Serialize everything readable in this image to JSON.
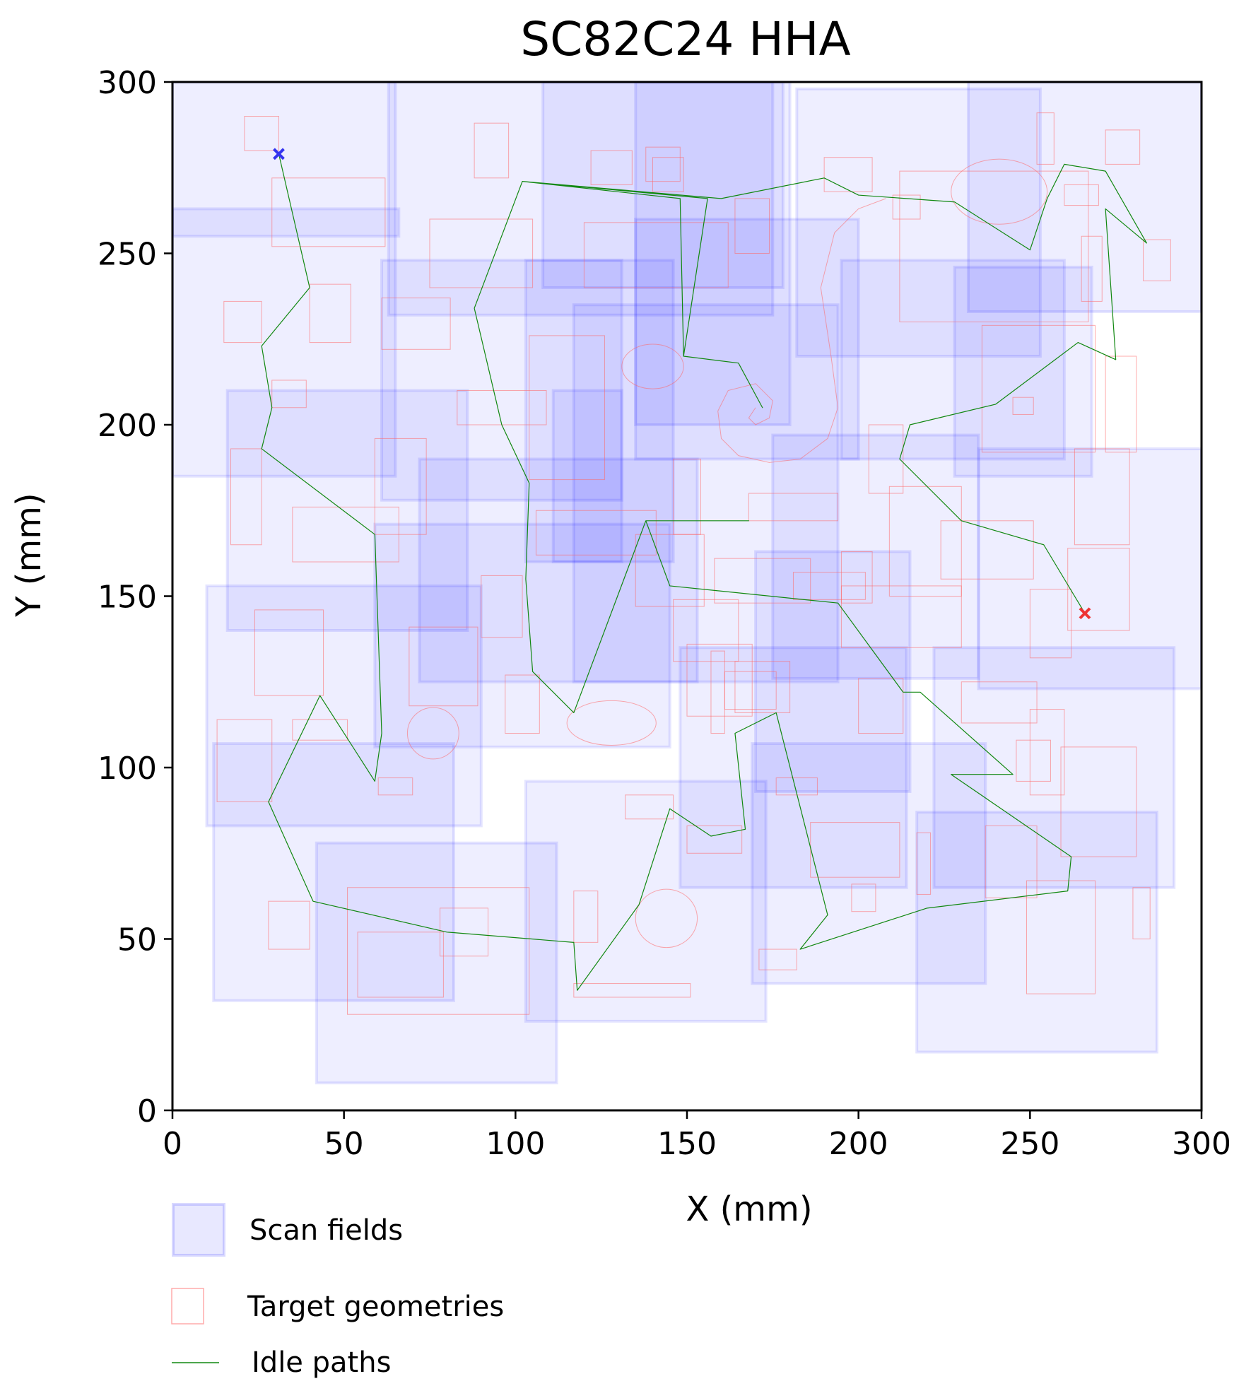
{
  "chart_data": {
    "type": "scatter",
    "title": "SC82C24 HHA",
    "xlabel": "X (mm)",
    "ylabel": "Y (mm)",
    "xlim": [
      0,
      300
    ],
    "ylim": [
      0,
      300
    ],
    "xticks": [
      0,
      50,
      100,
      150,
      200,
      250,
      300
    ],
    "yticks": [
      0,
      50,
      100,
      150,
      200,
      250,
      300
    ],
    "grid": false,
    "legend_placement": "bottom-left, below plot",
    "colors": {
      "scan_fill": "#0000ff",
      "scan_edge": "#0000ff",
      "target_edge": "#ff6666",
      "idle_path": "#118811",
      "start_marker": "#3333ee",
      "end_marker": "#ee3333"
    },
    "legend": [
      {
        "key": "scan",
        "label": "Scan fields"
      },
      {
        "key": "target",
        "label": "Target geometries"
      },
      {
        "key": "idle",
        "label": "Idle paths"
      }
    ],
    "scan_fields": [
      [
        0,
        185,
        65,
        115
      ],
      [
        63,
        232,
        112,
        68
      ],
      [
        108,
        240,
        70,
        60
      ],
      [
        135,
        200,
        45,
        100
      ],
      [
        0,
        255,
        66,
        8
      ],
      [
        61,
        178,
        70,
        70
      ],
      [
        16,
        140,
        70,
        70
      ],
      [
        72,
        125,
        81,
        65
      ],
      [
        135,
        190,
        65,
        70
      ],
      [
        103,
        160,
        43,
        88
      ],
      [
        117,
        125,
        77,
        110
      ],
      [
        182,
        220,
        71,
        78
      ],
      [
        232,
        233,
        68,
        67
      ],
      [
        228,
        185,
        40,
        61
      ],
      [
        195,
        190,
        65,
        58
      ],
      [
        235,
        123,
        65,
        70
      ],
      [
        10,
        83,
        80,
        70
      ],
      [
        12,
        32,
        70,
        75
      ],
      [
        42,
        8,
        70,
        70
      ],
      [
        103,
        26,
        70,
        70
      ],
      [
        148,
        65,
        66,
        70
      ],
      [
        170,
        93,
        45,
        70
      ],
      [
        169,
        37,
        68,
        70
      ],
      [
        222,
        65,
        70,
        70
      ],
      [
        217,
        17,
        70,
        70
      ],
      [
        175,
        126,
        60,
        71
      ],
      [
        59,
        106,
        86,
        65
      ],
      [
        111,
        160,
        20,
        50
      ]
    ],
    "target_geometries": [
      [
        21,
        280,
        10,
        10
      ],
      [
        29,
        252,
        33,
        20
      ],
      [
        88,
        272,
        10,
        16
      ],
      [
        75,
        240,
        30,
        20
      ],
      [
        61,
        222,
        20,
        15
      ],
      [
        40,
        224,
        12,
        17
      ],
      [
        15,
        224,
        11,
        12
      ],
      [
        29,
        205,
        10,
        8
      ],
      [
        17,
        165,
        9,
        28
      ],
      [
        35,
        160,
        31,
        16
      ],
      [
        59,
        168,
        15,
        28
      ],
      [
        83,
        200,
        26,
        10
      ],
      [
        104,
        184,
        22,
        42
      ],
      [
        122,
        270,
        12,
        10
      ],
      [
        140,
        268,
        9,
        10
      ],
      [
        164,
        250,
        10,
        16
      ],
      [
        120,
        240,
        42,
        19
      ],
      [
        190,
        268,
        14,
        10
      ],
      [
        210,
        260,
        8,
        7
      ],
      [
        212,
        230,
        55,
        44
      ],
      [
        252,
        276,
        5,
        15
      ],
      [
        272,
        276,
        10,
        10
      ],
      [
        260,
        264,
        10,
        6
      ],
      [
        265,
        236,
        6,
        19
      ],
      [
        283,
        242,
        8,
        12
      ],
      [
        236,
        192,
        33,
        37
      ],
      [
        245,
        203,
        6,
        5
      ],
      [
        272,
        192,
        9,
        28
      ],
      [
        203,
        180,
        10,
        20
      ],
      [
        209,
        150,
        21,
        32
      ],
      [
        195,
        148,
        9,
        15
      ],
      [
        224,
        155,
        27,
        17
      ],
      [
        263,
        165,
        16,
        28
      ],
      [
        261,
        140,
        18,
        24
      ],
      [
        250,
        132,
        12,
        20
      ],
      [
        230,
        113,
        22,
        12
      ],
      [
        250,
        92,
        10,
        25
      ],
      [
        259,
        74,
        22,
        32
      ],
      [
        246,
        96,
        10,
        12
      ],
      [
        237,
        62,
        15,
        21
      ],
      [
        280,
        50,
        5,
        15
      ],
      [
        249,
        34,
        20,
        33
      ],
      [
        217,
        63,
        4,
        18
      ],
      [
        200,
        110,
        13,
        16
      ],
      [
        195,
        135,
        35,
        18
      ],
      [
        181,
        149,
        21,
        8
      ],
      [
        158,
        148,
        28,
        13
      ],
      [
        146,
        131,
        19,
        18
      ],
      [
        150,
        115,
        19,
        21
      ],
      [
        157,
        110,
        4,
        24
      ],
      [
        161,
        117,
        15,
        11
      ],
      [
        176,
        92,
        12,
        5
      ],
      [
        186,
        68,
        26,
        16
      ],
      [
        198,
        58,
        7,
        8
      ],
      [
        171,
        41,
        11,
        6
      ],
      [
        150,
        75,
        16,
        8
      ],
      [
        132,
        85,
        14,
        7
      ],
      [
        117,
        33,
        34,
        4
      ],
      [
        117,
        49,
        7,
        15
      ],
      [
        78,
        45,
        14,
        14
      ],
      [
        51,
        28,
        53,
        37
      ],
      [
        54,
        33,
        25,
        19
      ],
      [
        28,
        47,
        12,
        14
      ],
      [
        13,
        90,
        16,
        24
      ],
      [
        35,
        108,
        16,
        6
      ],
      [
        60,
        92,
        10,
        5
      ],
      [
        24,
        121,
        20,
        25
      ],
      [
        69,
        118,
        20,
        23
      ],
      [
        90,
        138,
        12,
        18
      ],
      [
        97,
        110,
        10,
        17
      ],
      [
        106,
        162,
        35,
        13
      ],
      [
        135,
        147,
        20,
        21
      ],
      [
        146,
        168,
        8,
        22
      ],
      [
        168,
        172,
        26,
        8
      ],
      [
        164,
        116,
        16,
        15
      ],
      [
        138,
        271,
        10,
        10
      ]
    ],
    "target_ellipses": [
      [
        140,
        217,
        9,
        6.5
      ],
      [
        76,
        110,
        7.5,
        7.5
      ],
      [
        128,
        113,
        13,
        6.5
      ],
      [
        144,
        56,
        9,
        8.5
      ],
      [
        241,
        268,
        14,
        9.5
      ]
    ],
    "target_spiral": [
      [
        170,
        205
      ],
      [
        168,
        202
      ],
      [
        170,
        200
      ],
      [
        174,
        202
      ],
      [
        175,
        207
      ],
      [
        170,
        212
      ],
      [
        162,
        210
      ],
      [
        159,
        204
      ],
      [
        160,
        196
      ],
      [
        165,
        191
      ],
      [
        174,
        189
      ],
      [
        183,
        190
      ],
      [
        191,
        196
      ],
      [
        194,
        205
      ],
      [
        192,
        220
      ],
      [
        189,
        240
      ],
      [
        193,
        256
      ],
      [
        200,
        263
      ],
      [
        208,
        266
      ]
    ],
    "idle_path": [
      [
        31,
        279
      ],
      [
        40,
        240
      ],
      [
        26,
        223
      ],
      [
        29,
        205
      ],
      [
        26,
        193
      ],
      [
        59,
        168
      ],
      [
        61,
        110
      ],
      [
        59,
        96
      ],
      [
        43,
        121
      ],
      [
        28,
        90
      ],
      [
        41,
        61
      ],
      [
        80,
        52
      ],
      [
        117,
        49
      ],
      [
        118,
        35
      ],
      [
        136,
        60
      ],
      [
        145,
        88
      ],
      [
        157,
        80
      ],
      [
        167,
        82
      ],
      [
        164,
        110
      ],
      [
        176,
        116
      ],
      [
        191,
        57
      ],
      [
        183,
        47
      ],
      [
        220,
        59
      ],
      [
        261,
        64
      ],
      [
        262,
        74
      ],
      [
        227,
        98
      ],
      [
        245,
        98
      ],
      [
        218,
        122
      ],
      [
        213,
        122
      ],
      [
        194,
        148
      ],
      [
        145,
        153
      ],
      [
        138,
        172
      ],
      [
        168,
        172
      ],
      [
        138,
        172
      ],
      [
        117,
        116
      ],
      [
        105,
        128
      ],
      [
        103,
        155
      ],
      [
        104,
        183
      ],
      [
        96,
        200
      ],
      [
        88,
        234
      ],
      [
        102,
        271
      ],
      [
        156,
        266
      ],
      [
        149,
        220
      ],
      [
        165,
        218
      ],
      [
        172,
        205
      ],
      [
        165,
        218
      ],
      [
        149,
        220
      ],
      [
        148,
        266
      ],
      [
        102,
        271
      ],
      [
        160,
        266
      ],
      [
        190,
        272
      ],
      [
        200,
        267
      ],
      [
        228,
        265
      ],
      [
        250,
        251
      ],
      [
        255,
        266
      ],
      [
        260,
        276
      ],
      [
        272,
        274
      ],
      [
        284,
        253
      ],
      [
        272,
        263
      ],
      [
        275,
        219
      ],
      [
        264,
        224
      ],
      [
        240,
        206
      ],
      [
        215,
        200
      ],
      [
        212,
        190
      ],
      [
        230,
        172
      ],
      [
        254,
        165
      ],
      [
        266,
        145
      ]
    ],
    "start_marker": [
      31,
      279
    ],
    "end_marker": [
      266,
      145
    ]
  }
}
